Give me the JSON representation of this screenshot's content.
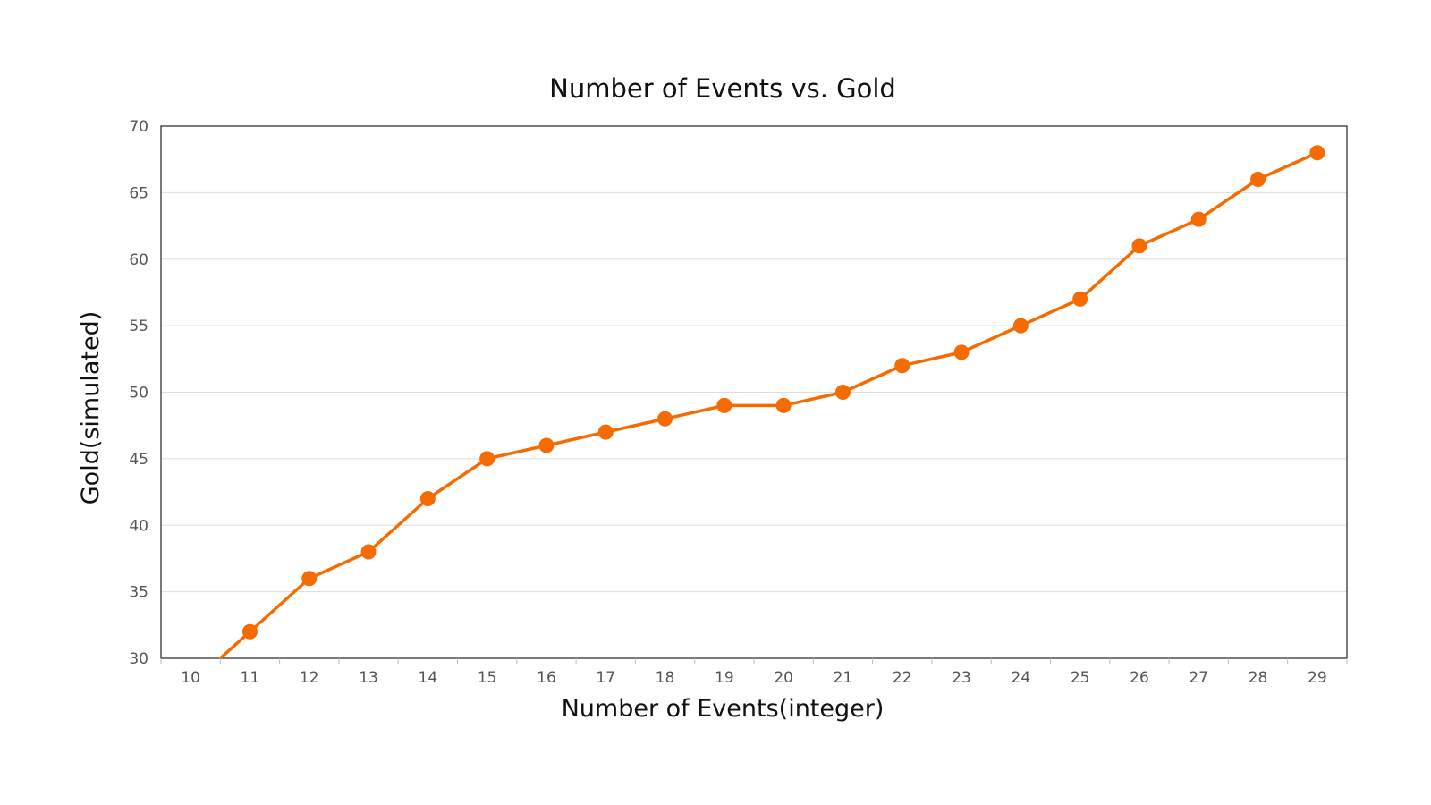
{
  "chart_data": {
    "type": "line",
    "title": "Number of Events vs. Gold",
    "xlabel": "Number of Events(integer)",
    "ylabel": "Gold(simulated)",
    "categories": [
      "10",
      "11",
      "12",
      "13",
      "14",
      "15",
      "16",
      "17",
      "18",
      "19",
      "20",
      "21",
      "22",
      "23",
      "24",
      "25",
      "26",
      "27",
      "28",
      "29"
    ],
    "yticks": [
      "30",
      "35",
      "40",
      "45",
      "50",
      "55",
      "60",
      "65",
      "70"
    ],
    "ylim": [
      30,
      70
    ],
    "grid": true,
    "legend": "none",
    "series": [
      {
        "color": "#F56B00",
        "values": [
          28,
          32,
          36,
          38,
          42,
          45,
          46,
          47,
          48,
          49,
          49,
          50,
          52,
          53,
          55,
          57,
          61,
          63,
          66,
          68
        ]
      }
    ]
  }
}
